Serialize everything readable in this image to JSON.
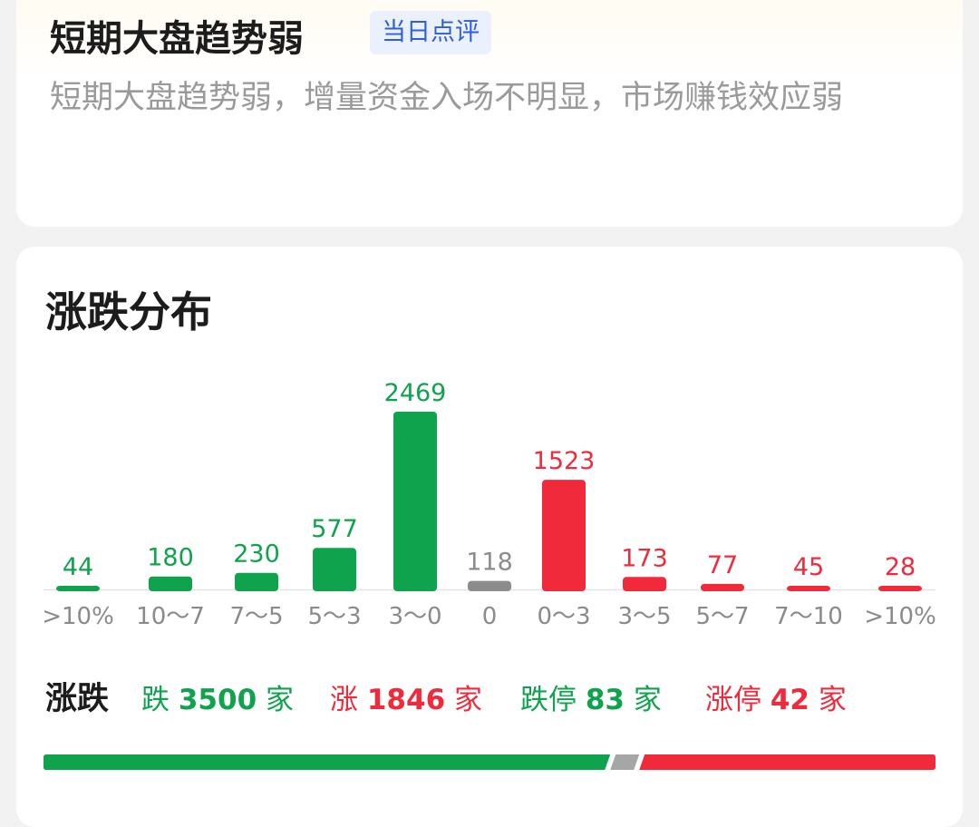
{
  "summary_card": {
    "headline": "短期大盘趋势弱",
    "tag": "当日点评",
    "description": "短期大盘趋势弱，增量资金入场不明显，市场赚钱效应弱"
  },
  "distribution": {
    "title": "涨跌分布",
    "counts_label": "涨跌",
    "decline": {
      "prefix": "跌",
      "value": "3500",
      "unit": "家"
    },
    "advance": {
      "prefix": "涨",
      "value": "1846",
      "unit": "家"
    },
    "limit_down": {
      "prefix": "跌停",
      "value": "83",
      "unit": "家"
    },
    "limit_up": {
      "prefix": "涨停",
      "value": "42",
      "unit": "家"
    }
  },
  "colors": {
    "down": "#0ea34c",
    "up": "#f02a3b",
    "flat": "#8c8c8c"
  },
  "chart_data": {
    "type": "bar",
    "categories": [
      ">10%",
      "10～7",
      "7～5",
      "5～3",
      "3～0",
      "0",
      "0～3",
      "3～5",
      "5～7",
      "7～10",
      ">10%"
    ],
    "values": [
      44,
      180,
      230,
      577,
      2469,
      118,
      1523,
      173,
      77,
      45,
      28
    ],
    "groups": [
      "down",
      "down",
      "down",
      "down",
      "down",
      "flat",
      "up",
      "up",
      "up",
      "up",
      "up"
    ],
    "title": "涨跌分布",
    "xlabel": "",
    "ylabel": "",
    "grid": false
  },
  "ratio_bar": {
    "down": 3500,
    "up": 1846
  }
}
